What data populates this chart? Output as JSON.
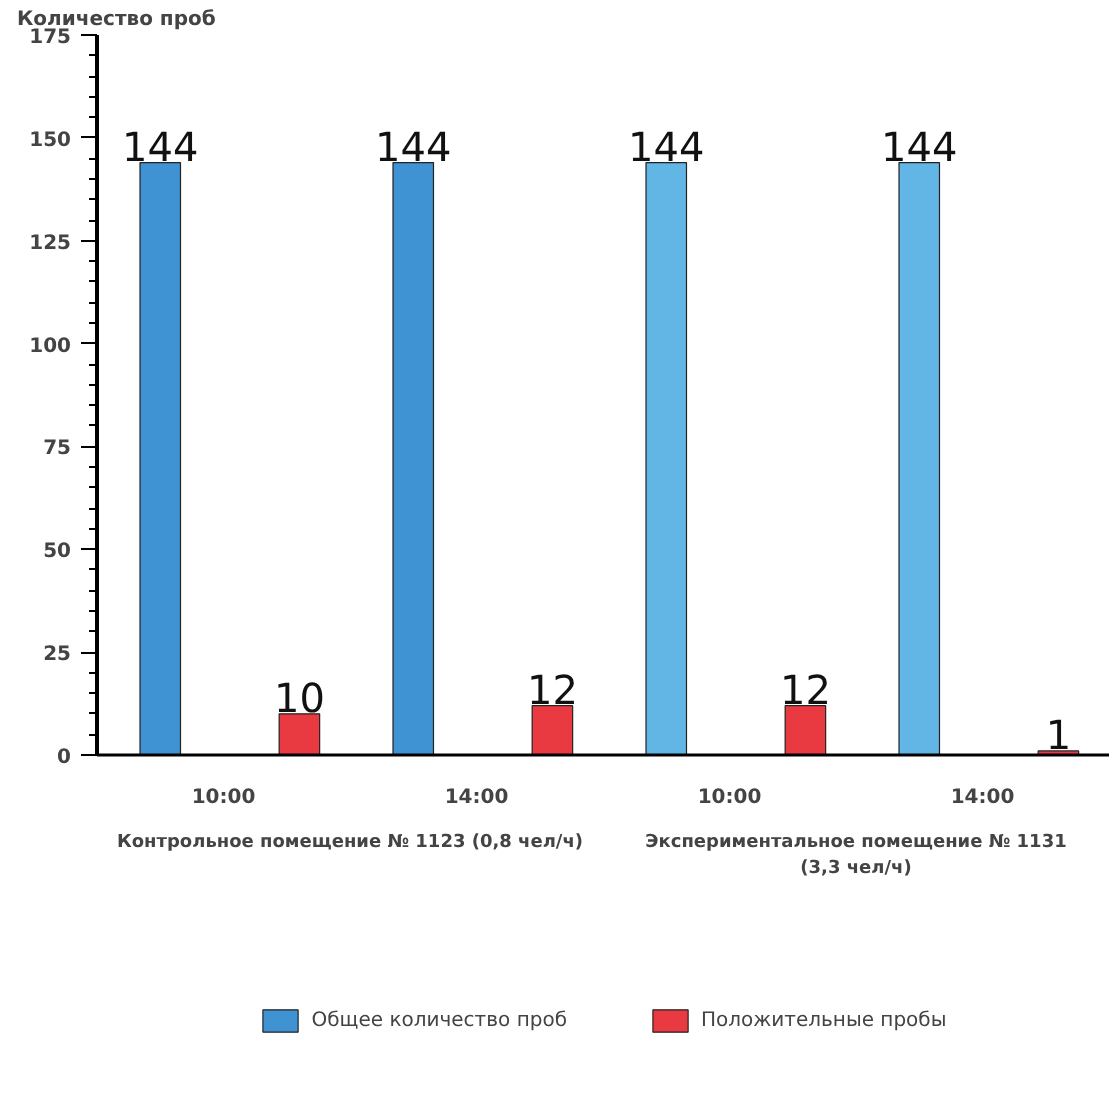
{
  "chart_data": {
    "type": "bar",
    "ylabel": "Количество проб",
    "categories": [
      "10:00",
      "14:00",
      "10:00",
      "14:00"
    ],
    "annotations": [
      "Контрольное помещение № 1123 (0,8 чел/ч)",
      "Экспериментальное помещение № 1131\n(3,3 чел/ч)"
    ],
    "series": [
      {
        "name": "Общее количество проб",
        "color": "#3f93d2",
        "colors": [
          "#3f93d2",
          "#3f93d2",
          "#62b6e6",
          "#62b6e6"
        ],
        "values": [
          144,
          144,
          144,
          144
        ]
      },
      {
        "name": "Положительные пробы",
        "color": "#e83a40",
        "values": [
          10,
          12,
          12,
          1
        ]
      }
    ],
    "ylim": [
      0,
      175
    ],
    "yticks": [
      0,
      25,
      50,
      75,
      100,
      125,
      150,
      175
    ],
    "data_labels": true,
    "legend": "bottom",
    "grid": false
  }
}
